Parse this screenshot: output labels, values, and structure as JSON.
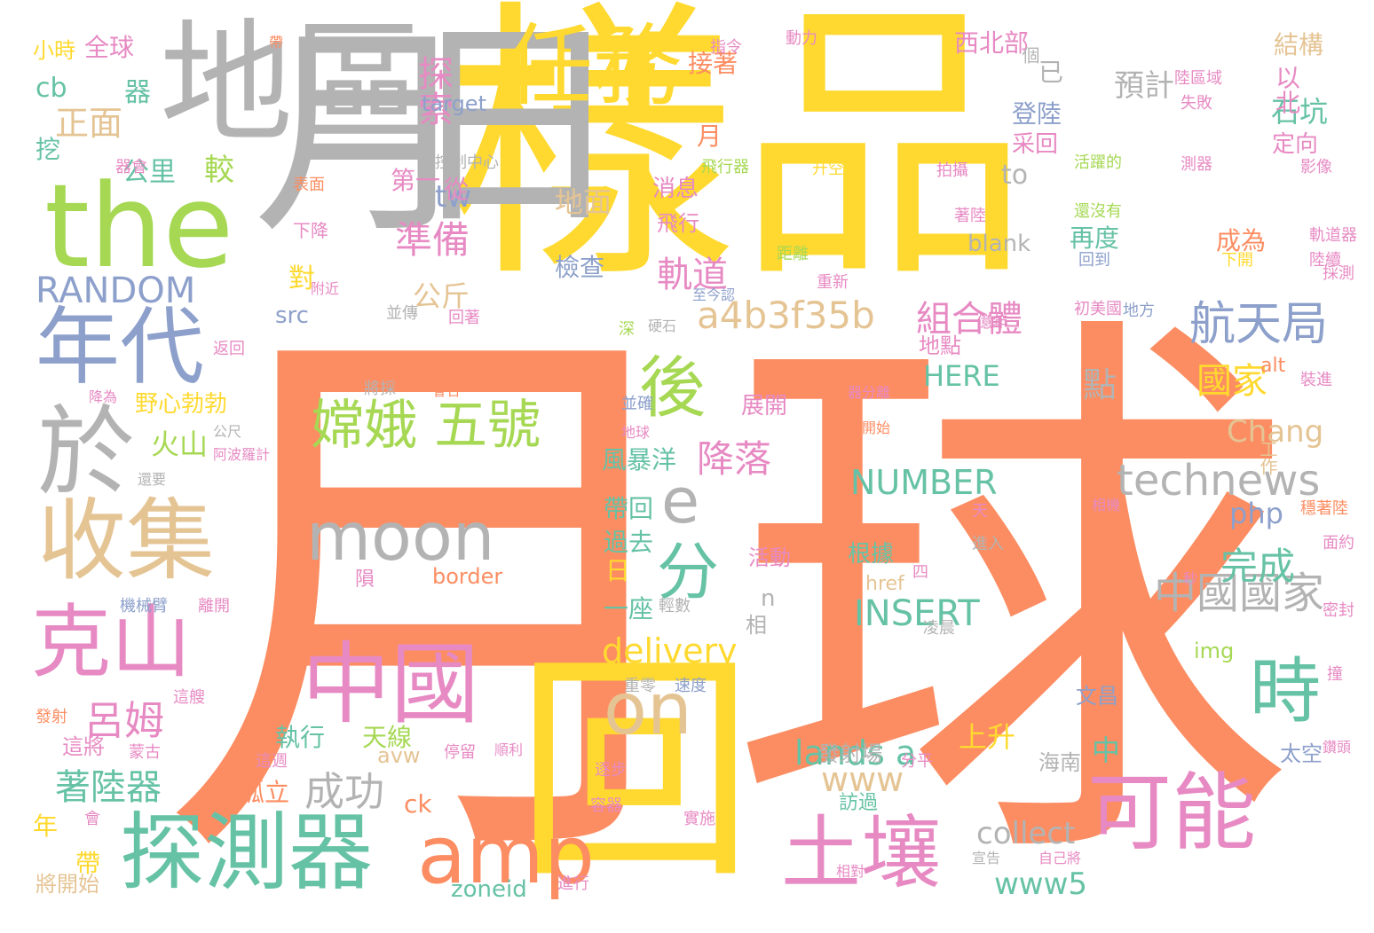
{
  "colors": {
    "orange": "#fc8d62",
    "yellow": "#ffd92f",
    "gray": "#b3b3b3",
    "green": "#a6d854",
    "teal": "#66c2a5",
    "blue": "#8da0cb",
    "pink": "#e78ac3",
    "tan": "#e5c494"
  },
  "words": [
    {
      "text": "月球",
      "color": "orange"
    },
    {
      "text": "樣品",
      "color": "yellow"
    },
    {
      "text": "月",
      "color": "gray"
    },
    {
      "text": "日",
      "color": "gray"
    },
    {
      "text": "地區",
      "color": "gray"
    },
    {
      "text": "the",
      "color": "green"
    },
    {
      "text": "任務",
      "color": "yellow"
    },
    {
      "text": "回",
      "color": "yellow"
    },
    {
      "text": "年代",
      "color": "blue"
    },
    {
      "text": "於",
      "color": "gray"
    },
    {
      "text": "收集",
      "color": "tan"
    },
    {
      "text": "克山",
      "color": "pink"
    },
    {
      "text": "探測器",
      "color": "teal"
    },
    {
      "text": "中國",
      "color": "pink"
    },
    {
      "text": "amp",
      "color": "orange"
    },
    {
      "text": "土壤",
      "color": "pink"
    },
    {
      "text": "可能",
      "color": "pink"
    },
    {
      "text": "moon",
      "color": "gray"
    },
    {
      "text": "後",
      "color": "green"
    },
    {
      "text": "時",
      "color": "teal"
    },
    {
      "text": "on",
      "color": "tan"
    },
    {
      "text": "分",
      "color": "teal"
    },
    {
      "text": "e",
      "color": "gray"
    },
    {
      "text": "嫦娥 五號",
      "color": "green"
    },
    {
      "text": "航天局",
      "color": "blue"
    },
    {
      "text": "中國國家",
      "color": "gray"
    },
    {
      "text": "technews",
      "color": "gray"
    },
    {
      "text": "a4b3f35b",
      "color": "tan"
    },
    {
      "text": "RANDOM",
      "color": "blue"
    },
    {
      "text": "呂姆",
      "color": "pink"
    },
    {
      "text": "著陸器",
      "color": "teal"
    },
    {
      "text": "成功",
      "color": "gray"
    },
    {
      "text": "完成",
      "color": "teal"
    },
    {
      "text": "準備",
      "color": "pink"
    },
    {
      "text": "降落",
      "color": "pink"
    },
    {
      "text": "探索",
      "color": "pink"
    },
    {
      "text": "軌道",
      "color": "pink"
    },
    {
      "text": "組合體",
      "color": "pink"
    },
    {
      "text": "國家",
      "color": "yellow"
    },
    {
      "text": "INSERT",
      "color": "teal"
    },
    {
      "text": "NUMBER",
      "color": "teal"
    },
    {
      "text": "delivery",
      "color": "yellow"
    },
    {
      "text": "lands a",
      "color": "teal"
    },
    {
      "text": "www",
      "color": "tan"
    },
    {
      "text": "www5",
      "color": "teal"
    },
    {
      "text": "collect",
      "color": "gray"
    },
    {
      "text": "Chang",
      "color": "tan"
    },
    {
      "text": "php",
      "color": "blue"
    },
    {
      "text": "HERE",
      "color": "teal"
    },
    {
      "text": "正面",
      "color": "tan"
    },
    {
      "text": "cb",
      "color": "teal"
    },
    {
      "text": "公里",
      "color": "teal"
    },
    {
      "text": "較",
      "color": "green"
    },
    {
      "text": "tw",
      "color": "blue"
    },
    {
      "text": "to",
      "color": "gray"
    },
    {
      "text": "公斤",
      "color": "tan"
    },
    {
      "text": "對",
      "color": "yellow"
    },
    {
      "text": "src",
      "color": "blue"
    },
    {
      "text": "火山",
      "color": "green"
    },
    {
      "text": "地面",
      "color": "tan"
    },
    {
      "text": "檢查",
      "color": "blue"
    },
    {
      "text": "預計",
      "color": "gray"
    },
    {
      "text": "石坑",
      "color": "teal"
    },
    {
      "text": "結構",
      "color": "tan"
    },
    {
      "text": "西北部",
      "color": "pink"
    },
    {
      "text": "以北",
      "color": "pink"
    },
    {
      "text": "定向",
      "color": "pink"
    },
    {
      "text": "登陸",
      "color": "blue"
    },
    {
      "text": "采回",
      "color": "pink"
    },
    {
      "text": "再度",
      "color": "teal"
    },
    {
      "text": "成為",
      "color": "orange"
    },
    {
      "text": "blank",
      "color": "gray"
    },
    {
      "text": "消息",
      "color": "pink"
    },
    {
      "text": "飛行",
      "color": "pink"
    },
    {
      "text": "器",
      "color": "teal"
    },
    {
      "text": "挖",
      "color": "teal"
    },
    {
      "text": "全球",
      "color": "pink"
    },
    {
      "text": "小時",
      "color": "yellow"
    },
    {
      "text": "target",
      "color": "blue"
    },
    {
      "text": "上升",
      "color": "yellow"
    },
    {
      "text": "中",
      "color": "teal"
    },
    {
      "text": "執行",
      "color": "teal"
    },
    {
      "text": "天線",
      "color": "green"
    },
    {
      "text": "風暴洋",
      "color": "teal"
    },
    {
      "text": "帶回",
      "color": "teal"
    },
    {
      "text": "過去",
      "color": "teal"
    },
    {
      "text": "一座",
      "color": "teal"
    },
    {
      "text": "展開",
      "color": "pink"
    },
    {
      "text": "根據",
      "color": "teal"
    },
    {
      "text": "孤立",
      "color": "orange"
    },
    {
      "text": "野心勃勃",
      "color": "yellow"
    },
    {
      "text": "這將",
      "color": "pink"
    },
    {
      "text": "將開始",
      "color": "tan"
    },
    {
      "text": "年",
      "color": "yellow"
    },
    {
      "text": "帶",
      "color": "yellow"
    },
    {
      "text": "ck",
      "color": "orange"
    },
    {
      "text": "avw",
      "color": "tan"
    },
    {
      "text": "zoneid",
      "color": "teal"
    },
    {
      "text": "border",
      "color": "orange"
    },
    {
      "text": "img",
      "color": "green"
    },
    {
      "text": "alt",
      "color": "orange"
    },
    {
      "text": "href",
      "color": "tan"
    },
    {
      "text": "文昌",
      "color": "blue"
    },
    {
      "text": "太空",
      "color": "blue"
    },
    {
      "text": "工作",
      "color": "tan"
    },
    {
      "text": "海南",
      "color": "gray"
    },
    {
      "text": "訪過",
      "color": "teal"
    },
    {
      "text": "接著",
      "color": "orange"
    },
    {
      "text": "已",
      "color": "gray"
    },
    {
      "text": "個",
      "color": "gray"
    },
    {
      "text": "點",
      "color": "gray"
    },
    {
      "text": "n",
      "color": "gray"
    },
    {
      "text": "相",
      "color": "gray"
    },
    {
      "text": "活動",
      "color": "pink"
    },
    {
      "text": "地點",
      "color": "pink"
    },
    {
      "text": "第一",
      "color": "pink"
    },
    {
      "text": "日",
      "color": "yellow"
    },
    {
      "text": "月",
      "color": "orange"
    },
    {
      "text": "從",
      "color": "pink"
    },
    {
      "text": "隕",
      "color": "pink"
    },
    {
      "text": "活躍的",
      "color": "green"
    },
    {
      "text": "控制中心",
      "color": "gray"
    },
    {
      "text": "發射場",
      "color": "gray"
    },
    {
      "text": "發射",
      "color": "orange"
    },
    {
      "text": "凌晨",
      "color": "gray"
    },
    {
      "text": "表面",
      "color": "orange"
    },
    {
      "text": "下降",
      "color": "pink"
    },
    {
      "text": "還沒有",
      "color": "green"
    },
    {
      "text": "回到",
      "color": "blue"
    },
    {
      "text": "下開",
      "color": "yellow"
    },
    {
      "text": "升空",
      "color": "yellow"
    },
    {
      "text": "拍攝",
      "color": "pink"
    },
    {
      "text": "飛行器",
      "color": "green"
    },
    {
      "text": "測器",
      "color": "pink"
    },
    {
      "text": "陸區域",
      "color": "pink"
    },
    {
      "text": "失敗",
      "color": "pink"
    },
    {
      "text": "動力",
      "color": "pink"
    },
    {
      "text": "指令",
      "color": "pink"
    },
    {
      "text": "器會",
      "color": "pink"
    },
    {
      "text": "影像",
      "color": "pink"
    },
    {
      "text": "著陸",
      "color": "pink"
    },
    {
      "text": "距離",
      "color": "green"
    },
    {
      "text": "重新",
      "color": "pink"
    },
    {
      "text": "附近",
      "color": "pink"
    },
    {
      "text": "並傳",
      "color": "gray"
    },
    {
      "text": "回著",
      "color": "pink"
    },
    {
      "text": "至今認",
      "color": "blue"
    },
    {
      "text": "初美國",
      "color": "pink"
    },
    {
      "text": "地方",
      "color": "blue"
    },
    {
      "text": "返回",
      "color": "pink"
    },
    {
      "text": "硬石",
      "color": "gray"
    },
    {
      "text": "深",
      "color": "green"
    },
    {
      "text": "億年",
      "color": "pink"
    },
    {
      "text": "將採",
      "color": "gray"
    },
    {
      "text": "會合",
      "color": "orange"
    },
    {
      "text": "器分離",
      "color": "pink"
    },
    {
      "text": "處開始",
      "color": "orange"
    },
    {
      "text": "降為",
      "color": "pink"
    },
    {
      "text": "並確",
      "color": "blue"
    },
    {
      "text": "地球",
      "color": "pink"
    },
    {
      "text": "阿波羅計",
      "color": "pink"
    },
    {
      "text": "公尺",
      "color": "gray"
    },
    {
      "text": "還要",
      "color": "gray"
    },
    {
      "text": "軌道器",
      "color": "pink"
    },
    {
      "text": "陸續",
      "color": "pink"
    },
    {
      "text": "採測",
      "color": "pink"
    },
    {
      "text": "裝進",
      "color": "pink"
    },
    {
      "text": "相機",
      "color": "pink"
    },
    {
      "text": "穩著陸",
      "color": "orange"
    },
    {
      "text": "面約",
      "color": "pink"
    },
    {
      "text": "秒",
      "color": "pink"
    },
    {
      "text": "密封",
      "color": "pink"
    },
    {
      "text": "撞",
      "color": "pink"
    },
    {
      "text": "鑽頭",
      "color": "pink"
    },
    {
      "text": "天",
      "color": "pink"
    },
    {
      "text": "進入",
      "color": "gray"
    },
    {
      "text": "重零",
      "color": "gray"
    },
    {
      "text": "速度",
      "color": "blue"
    },
    {
      "text": "機械臂",
      "color": "blue"
    },
    {
      "text": "離開",
      "color": "pink"
    },
    {
      "text": "這艘",
      "color": "pink"
    },
    {
      "text": "蒙古",
      "color": "pink"
    },
    {
      "text": "這週",
      "color": "pink"
    },
    {
      "text": "停留",
      "color": "pink"
    },
    {
      "text": "分平",
      "color": "pink"
    },
    {
      "text": "逐步",
      "color": "pink"
    },
    {
      "text": "會",
      "color": "pink"
    },
    {
      "text": "容器",
      "color": "pink"
    },
    {
      "text": "進行",
      "color": "pink"
    },
    {
      "text": "實施",
      "color": "pink"
    },
    {
      "text": "相對",
      "color": "pink"
    },
    {
      "text": "宣告",
      "color": "gray"
    },
    {
      "text": "自己將",
      "color": "pink"
    },
    {
      "text": "順利",
      "color": "pink"
    },
    {
      "text": "輕數",
      "color": "gray"
    },
    {
      "text": "四",
      "color": "pink"
    },
    {
      "text": "帶",
      "color": "orange"
    },
    {
      "text": "米",
      "color": "gray"
    }
  ]
}
